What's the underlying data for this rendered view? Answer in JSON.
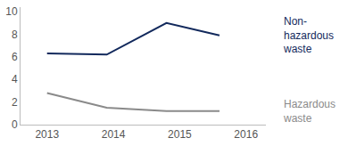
{
  "chart_data": {
    "type": "line",
    "x": [
      2013,
      2013.9,
      2014.8,
      2015.6
    ],
    "series": [
      {
        "name": "Non-hazardous waste",
        "color": "#12295c",
        "values": [
          6.3,
          6.2,
          9.0,
          7.9
        ]
      },
      {
        "name": "Hazardous waste",
        "color": "#8a8a8a",
        "values": [
          2.8,
          1.5,
          1.2,
          1.2
        ]
      }
    ],
    "xlim": [
      2012.6,
      2016.3
    ],
    "xticks": [
      2013,
      2014,
      2015,
      2016
    ],
    "ylim": [
      0,
      10.4
    ],
    "yticks": [
      0,
      2,
      4,
      6,
      8,
      10
    ],
    "grid": false,
    "legend": "none"
  }
}
